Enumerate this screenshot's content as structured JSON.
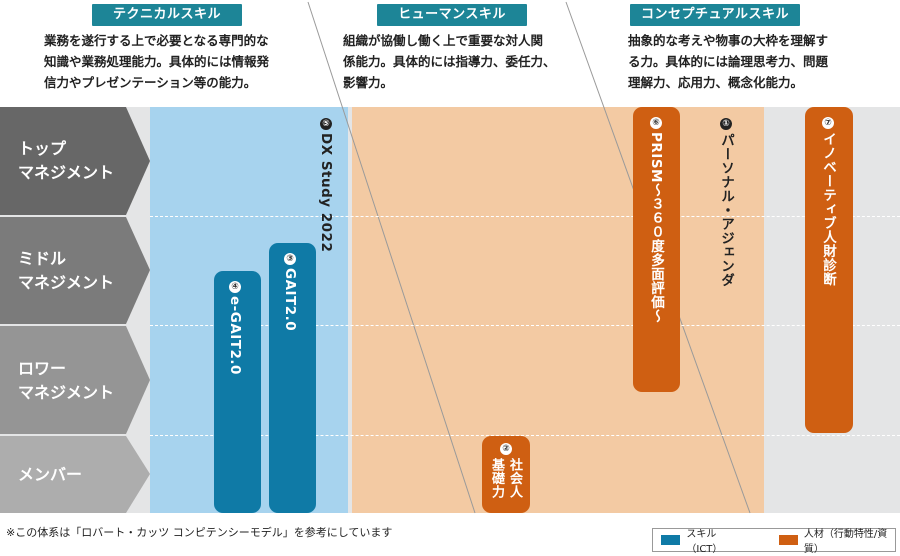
{
  "categories": [
    {
      "tag": "テクニカルスキル",
      "lines": [
        "業務を遂行する上で必要となる専門的な",
        "知識や業務処理能力。具体的には情報発",
        "信力やプレゼンテーション等の能力。"
      ]
    },
    {
      "tag": "ヒューマンスキル",
      "lines": [
        "組織が協働し働く上で重要な対人関",
        "係能力。具体的には指導力、委任力、",
        "影響力。"
      ]
    },
    {
      "tag": "コンセプチュアルスキル",
      "lines": [
        "抽象的な考えや物事の大枠を理解す",
        "る力。具体的には論理思考力、問題",
        "理解力、応用力、概念化能力。"
      ]
    }
  ],
  "rows": [
    {
      "lines": [
        "トップ",
        "マネジメント"
      ]
    },
    {
      "lines": [
        "ミドル",
        "マネジメント"
      ]
    },
    {
      "lines": [
        "ロワー",
        "マネジメント"
      ]
    },
    {
      "lines": [
        "メンバー"
      ]
    }
  ],
  "programs": {
    "p1": {
      "num": "①",
      "label": "パーソナル・アジェンダ",
      "type": "text"
    },
    "p2": {
      "num": "②",
      "lines": [
        "社会人",
        "基礎力"
      ],
      "type": "human"
    },
    "p3": {
      "num": "③",
      "label": "GAIT2.0",
      "type": "skill"
    },
    "p4": {
      "num": "④",
      "label": "e-GAIT2.0",
      "type": "skill"
    },
    "p5": {
      "num": "⑤",
      "label": "DX Study 2022",
      "type": "text"
    },
    "p6": {
      "num": "⑥",
      "label": "PRISM〜３６０度多面評価〜",
      "type": "human"
    },
    "p7": {
      "num": "⑦",
      "label": "イノベーティブ人財診断",
      "type": "human"
    }
  },
  "footnote": "※この体系は「ロバート・カッツ コンピテンシーモデル」を参考にしています",
  "legend": {
    "skill": "スキル（ICT）",
    "human": "人材（行動特性/資質）"
  },
  "colors": {
    "teal": "#1d8597",
    "skill_bar": "#0f7aa6",
    "human_bar": "#cf5f12",
    "tech_zone": "#a7d3ee",
    "human_zone": "#f3caa3",
    "row_dark": "#6b6b6b"
  }
}
